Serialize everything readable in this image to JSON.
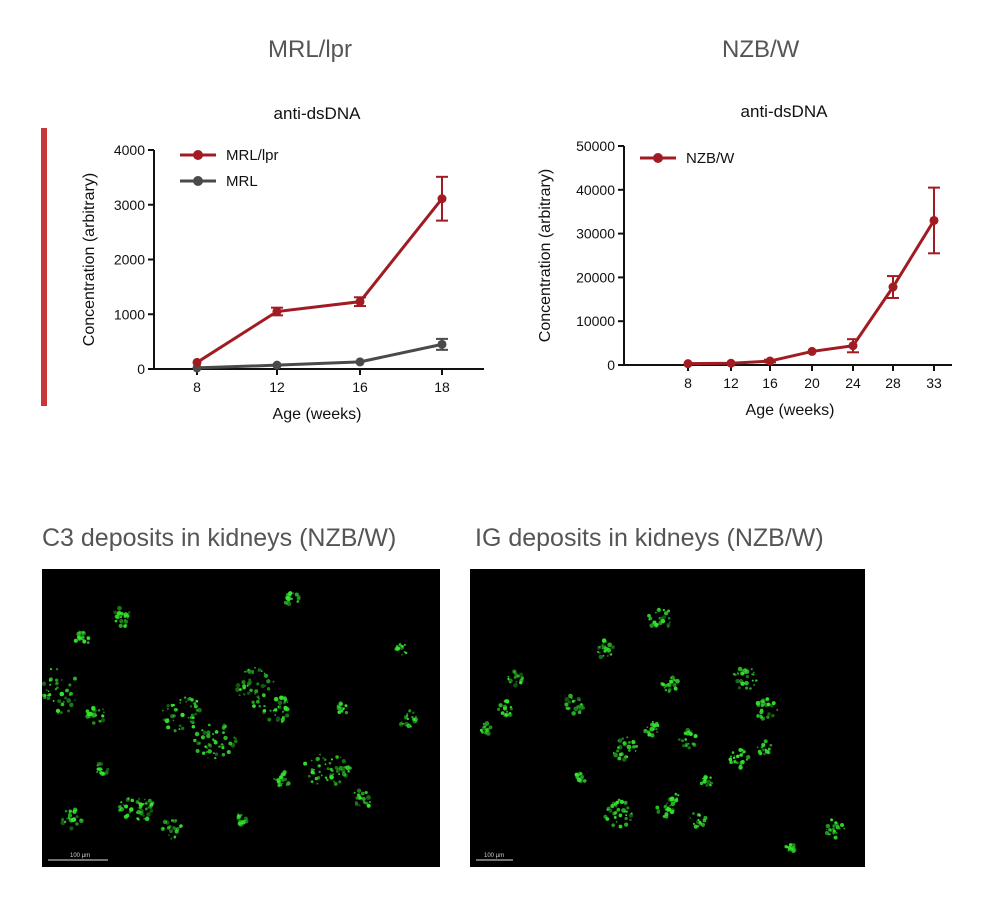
{
  "sections": {
    "left_title": "MRL/lpr",
    "right_title": "NZB/W"
  },
  "colors": {
    "accent": "#c8373a",
    "series_red": "#a01c22",
    "series_gray": "#4a4a4a",
    "deposit_green": "#34e62e"
  },
  "chart_data": [
    {
      "type": "line",
      "title": "anti-dsDNA",
      "xlabel": "Age (weeks)",
      "ylabel": "Concentration (arbitrary)",
      "categories": [
        "8",
        "12",
        "16",
        "18"
      ],
      "ylim": [
        0,
        4000
      ],
      "yticks": [
        "0",
        "1000",
        "2000",
        "3000",
        "4000"
      ],
      "grid": false,
      "legend": "top-left",
      "series": [
        {
          "name": "MRL/lpr",
          "color": "#a01c22",
          "values": [
            120,
            1050,
            1230,
            3110
          ],
          "errors": [
            0,
            70,
            80,
            400
          ]
        },
        {
          "name": "MRL",
          "color": "#4a4a4a",
          "values": [
            20,
            70,
            130,
            450
          ],
          "errors": [
            0,
            0,
            0,
            100
          ]
        }
      ]
    },
    {
      "type": "line",
      "title": "anti-dsDNA",
      "xlabel": "Age (weeks)",
      "ylabel": "Concentration (arbitrary)",
      "categories": [
        "8",
        "12",
        "16",
        "20",
        "24",
        "28",
        "33"
      ],
      "ylim": [
        0,
        50000
      ],
      "yticks": [
        "0",
        "10000",
        "20000",
        "30000",
        "40000",
        "50000"
      ],
      "grid": false,
      "legend": "top-left",
      "series": [
        {
          "name": "NZB/W",
          "color": "#a01c22",
          "values": [
            300,
            400,
            900,
            3100,
            4400,
            17800,
            33000
          ],
          "errors": [
            0,
            0,
            300,
            0,
            1500,
            2500,
            7500
          ]
        }
      ]
    }
  ],
  "images": {
    "left": {
      "title": "C3 deposits in kidneys (NZB/W)",
      "scale": "100 µm"
    },
    "right": {
      "title": "IG deposits in kidneys (NZB/W)",
      "scale": "100 µm"
    }
  }
}
